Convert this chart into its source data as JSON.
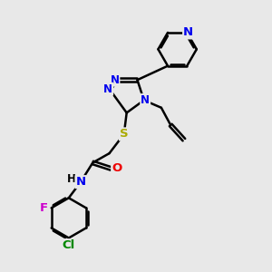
{
  "bg_color": "#e8e8e8",
  "bond_color": "#000000",
  "bond_width": 1.8,
  "atom_colors": {
    "N": "#0000ee",
    "S": "#aaaa00",
    "O": "#ee0000",
    "F": "#cc00cc",
    "Cl": "#008800",
    "C": "#000000",
    "H": "#000000"
  },
  "font_size": 8.5,
  "fig_width": 3.0,
  "fig_height": 3.0,
  "dpi": 100
}
